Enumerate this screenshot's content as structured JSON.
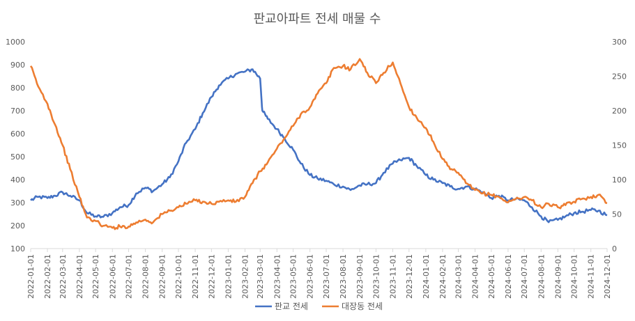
{
  "chart_data": {
    "type": "line",
    "title": "판교아파트 전세 매물 수",
    "xlabel": "",
    "ylabel": "",
    "x_start": "2022-01-01",
    "x_end": "2024-12-01",
    "x_tick_labels": [
      "2022-01-01",
      "2022-02-01",
      "2022-03-01",
      "2022-04-01",
      "2022-05-01",
      "2022-06-01",
      "2022-07-01",
      "2022-08-01",
      "2022-09-01",
      "2022-10-01",
      "2022-11-01",
      "2022-12-01",
      "2023-01-01",
      "2023-02-01",
      "2023-03-01",
      "2023-04-01",
      "2023-05-01",
      "2023-06-01",
      "2023-07-01",
      "2023-08-01",
      "2023-09-01",
      "2023-10-01",
      "2023-11-01",
      "2023-12-01",
      "2024-01-01",
      "2024-02-01",
      "2024-03-01",
      "2024-04-01",
      "2024-05-01",
      "2024-06-01",
      "2024-07-01",
      "2024-08-01",
      "2024-09-01",
      "2024-10-01",
      "2024-11-01",
      "2024-12-01"
    ],
    "y_left": {
      "min": 100,
      "max": 1000,
      "ticks": [
        "100",
        "200",
        "300",
        "400",
        "500",
        "600",
        "700",
        "800",
        "900",
        "1000"
      ]
    },
    "y_right": {
      "min": 0,
      "max": 300,
      "ticks": [
        "0",
        "50",
        "100",
        "150",
        "200",
        "250",
        "300"
      ]
    },
    "grid": false,
    "legend_position": "bottom",
    "series": [
      {
        "name": "판교 전세",
        "axis": "left",
        "color": "#4472C4",
        "points": [
          [
            "2022-01-01",
            310
          ],
          [
            "2022-01-15",
            325
          ],
          [
            "2022-02-01",
            320
          ],
          [
            "2022-02-15",
            330
          ],
          [
            "2022-03-01",
            345
          ],
          [
            "2022-03-15",
            330
          ],
          [
            "2022-04-01",
            310
          ],
          [
            "2022-04-15",
            255
          ],
          [
            "2022-05-01",
            240
          ],
          [
            "2022-05-15",
            238
          ],
          [
            "2022-06-01",
            255
          ],
          [
            "2022-06-15",
            280
          ],
          [
            "2022-07-01",
            290
          ],
          [
            "2022-07-15",
            340
          ],
          [
            "2022-08-01",
            365
          ],
          [
            "2022-08-15",
            350
          ],
          [
            "2022-09-01",
            380
          ],
          [
            "2022-09-15",
            410
          ],
          [
            "2022-10-01",
            480
          ],
          [
            "2022-10-15",
            560
          ],
          [
            "2022-11-01",
            620
          ],
          [
            "2022-11-15",
            690
          ],
          [
            "2022-12-01",
            760
          ],
          [
            "2022-12-15",
            810
          ],
          [
            "2023-01-01",
            840
          ],
          [
            "2023-01-15",
            860
          ],
          [
            "2023-02-01",
            870
          ],
          [
            "2023-02-15",
            880
          ],
          [
            "2023-03-01",
            840
          ],
          [
            "2023-03-05",
            700
          ],
          [
            "2023-03-15",
            665
          ],
          [
            "2023-04-01",
            620
          ],
          [
            "2023-04-15",
            580
          ],
          [
            "2023-05-01",
            530
          ],
          [
            "2023-05-15",
            470
          ],
          [
            "2023-06-01",
            420
          ],
          [
            "2023-06-15",
            405
          ],
          [
            "2023-07-01",
            395
          ],
          [
            "2023-07-15",
            380
          ],
          [
            "2023-08-01",
            370
          ],
          [
            "2023-08-15",
            355
          ],
          [
            "2023-09-01",
            375
          ],
          [
            "2023-09-15",
            380
          ],
          [
            "2023-10-01",
            385
          ],
          [
            "2023-10-15",
            430
          ],
          [
            "2023-11-01",
            470
          ],
          [
            "2023-11-15",
            485
          ],
          [
            "2023-12-01",
            495
          ],
          [
            "2023-12-15",
            460
          ],
          [
            "2024-01-01",
            420
          ],
          [
            "2024-01-15",
            400
          ],
          [
            "2024-02-01",
            385
          ],
          [
            "2024-02-15",
            370
          ],
          [
            "2024-03-01",
            360
          ],
          [
            "2024-03-15",
            370
          ],
          [
            "2024-04-01",
            360
          ],
          [
            "2024-04-15",
            345
          ],
          [
            "2024-05-01",
            320
          ],
          [
            "2024-05-15",
            330
          ],
          [
            "2024-06-01",
            310
          ],
          [
            "2024-06-15",
            315
          ],
          [
            "2024-07-01",
            310
          ],
          [
            "2024-07-15",
            280
          ],
          [
            "2024-08-01",
            240
          ],
          [
            "2024-08-15",
            215
          ],
          [
            "2024-09-01",
            225
          ],
          [
            "2024-09-15",
            240
          ],
          [
            "2024-10-01",
            255
          ],
          [
            "2024-10-15",
            260
          ],
          [
            "2024-11-01",
            268
          ],
          [
            "2024-11-15",
            265
          ],
          [
            "2024-12-01",
            245
          ]
        ]
      },
      {
        "name": "대장동 전세",
        "axis": "right",
        "color": "#ED7D31",
        "points": [
          [
            "2022-01-01",
            265
          ],
          [
            "2022-01-15",
            235
          ],
          [
            "2022-02-01",
            210
          ],
          [
            "2022-02-15",
            180
          ],
          [
            "2022-03-01",
            150
          ],
          [
            "2022-03-15",
            115
          ],
          [
            "2022-04-01",
            75
          ],
          [
            "2022-04-15",
            45
          ],
          [
            "2022-05-01",
            40
          ],
          [
            "2022-05-15",
            33
          ],
          [
            "2022-06-01",
            30
          ],
          [
            "2022-06-15",
            32
          ],
          [
            "2022-07-01",
            32
          ],
          [
            "2022-07-15",
            38
          ],
          [
            "2022-08-01",
            42
          ],
          [
            "2022-08-15",
            38
          ],
          [
            "2022-09-01",
            50
          ],
          [
            "2022-09-15",
            55
          ],
          [
            "2022-10-01",
            60
          ],
          [
            "2022-10-15",
            65
          ],
          [
            "2022-11-01",
            70
          ],
          [
            "2022-11-15",
            68
          ],
          [
            "2022-12-01",
            65
          ],
          [
            "2022-12-15",
            68
          ],
          [
            "2023-01-01",
            70
          ],
          [
            "2023-01-15",
            68
          ],
          [
            "2023-02-01",
            75
          ],
          [
            "2023-02-15",
            95
          ],
          [
            "2023-03-01",
            112
          ],
          [
            "2023-03-15",
            125
          ],
          [
            "2023-04-01",
            145
          ],
          [
            "2023-04-15",
            160
          ],
          [
            "2023-05-01",
            178
          ],
          [
            "2023-05-15",
            195
          ],
          [
            "2023-06-01",
            205
          ],
          [
            "2023-06-15",
            225
          ],
          [
            "2023-07-01",
            240
          ],
          [
            "2023-07-15",
            262
          ],
          [
            "2023-08-01",
            265
          ],
          [
            "2023-08-15",
            260
          ],
          [
            "2023-09-01",
            275
          ],
          [
            "2023-09-15",
            255
          ],
          [
            "2023-10-01",
            240
          ],
          [
            "2023-10-15",
            255
          ],
          [
            "2023-11-01",
            270
          ],
          [
            "2023-11-15",
            240
          ],
          [
            "2023-12-01",
            205
          ],
          [
            "2023-12-15",
            190
          ],
          [
            "2024-01-01",
            175
          ],
          [
            "2024-01-15",
            155
          ],
          [
            "2024-02-01",
            130
          ],
          [
            "2024-02-15",
            115
          ],
          [
            "2024-03-01",
            110
          ],
          [
            "2024-03-15",
            95
          ],
          [
            "2024-04-01",
            85
          ],
          [
            "2024-04-15",
            80
          ],
          [
            "2024-05-01",
            78
          ],
          [
            "2024-05-15",
            75
          ],
          [
            "2024-06-01",
            67
          ],
          [
            "2024-06-15",
            72
          ],
          [
            "2024-07-01",
            75
          ],
          [
            "2024-07-15",
            70
          ],
          [
            "2024-08-01",
            60
          ],
          [
            "2024-08-15",
            65
          ],
          [
            "2024-09-01",
            60
          ],
          [
            "2024-09-15",
            63
          ],
          [
            "2024-10-01",
            68
          ],
          [
            "2024-10-15",
            72
          ],
          [
            "2024-11-01",
            75
          ],
          [
            "2024-11-15",
            78
          ],
          [
            "2024-12-01",
            66
          ]
        ]
      }
    ]
  }
}
